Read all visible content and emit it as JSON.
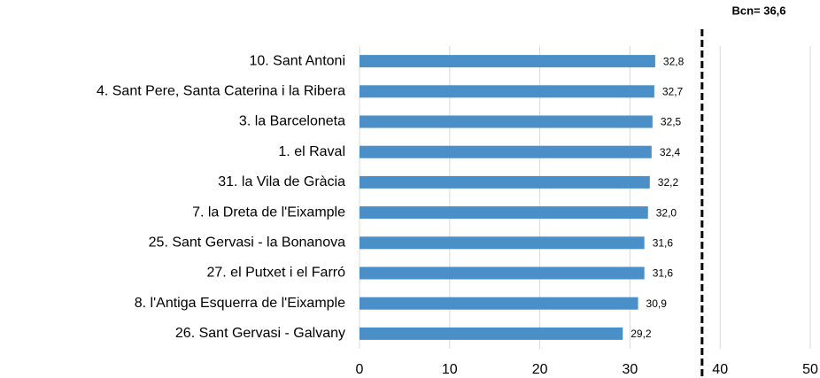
{
  "chart_data": {
    "type": "bar",
    "orientation": "horizontal",
    "categories": [
      "10. Sant Antoni",
      "4. Sant Pere, Santa Caterina i la Ribera",
      "3. la Barceloneta",
      "1. el Raval",
      "31. la Vila de Gràcia",
      "7. la Dreta de l'Eixample",
      "25. Sant Gervasi - la Bonanova",
      "27. el Putxet i el Farró",
      "8. l'Antiga Esquerra de l'Eixample",
      "26. Sant Gervasi - Galvany"
    ],
    "values": [
      32.8,
      32.7,
      32.5,
      32.4,
      32.2,
      32.0,
      31.6,
      31.6,
      30.9,
      29.2
    ],
    "value_labels": [
      "32,8",
      "32,7",
      "32,5",
      "32,4",
      "32,2",
      "32,0",
      "31,6",
      "31,6",
      "30,9",
      "29,2"
    ],
    "color": "#4a8fc7",
    "xlim": [
      0,
      50
    ],
    "xticks": [
      0,
      10,
      20,
      30,
      40,
      50
    ],
    "grid": true,
    "reference_line": 38,
    "annotation": "Bcn= 36,6"
  }
}
